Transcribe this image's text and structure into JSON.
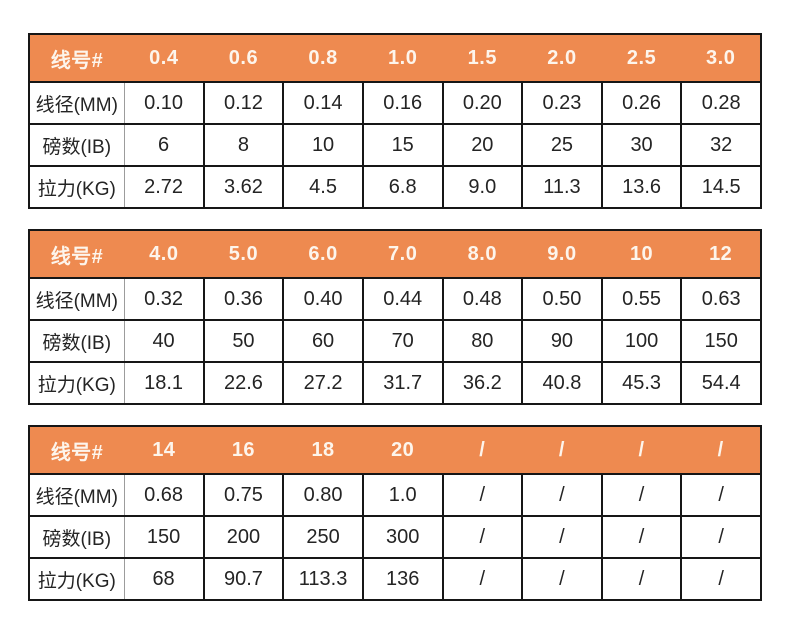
{
  "style": {
    "header_bg": "#ee8a50",
    "header_text_color": "#fdf5ec",
    "grid_line_color": "#161616",
    "label_divider_color": "#9c9c9c",
    "cell_text_color": "#242424",
    "page_bg": "#ffffff"
  },
  "chart_data": [
    {
      "type": "table",
      "header_label": "线号#",
      "columns": [
        "0.4",
        "0.6",
        "0.8",
        "1.0",
        "1.5",
        "2.0",
        "2.5",
        "3.0"
      ],
      "rows": [
        {
          "label": "线径(MM)",
          "values": [
            "0.10",
            "0.12",
            "0.14",
            "0.16",
            "0.20",
            "0.23",
            "0.26",
            "0.28"
          ]
        },
        {
          "label": "磅数(IB)",
          "values": [
            "6",
            "8",
            "10",
            "15",
            "20",
            "25",
            "30",
            "32"
          ]
        },
        {
          "label": "拉力(KG)",
          "values": [
            "2.72",
            "3.62",
            "4.5",
            "6.8",
            "9.0",
            "11.3",
            "13.6",
            "14.5"
          ]
        }
      ]
    },
    {
      "type": "table",
      "header_label": "线号#",
      "columns": [
        "4.0",
        "5.0",
        "6.0",
        "7.0",
        "8.0",
        "9.0",
        "10",
        "12"
      ],
      "rows": [
        {
          "label": "线径(MM)",
          "values": [
            "0.32",
            "0.36",
            "0.40",
            "0.44",
            "0.48",
            "0.50",
            "0.55",
            "0.63"
          ]
        },
        {
          "label": "磅数(IB)",
          "values": [
            "40",
            "50",
            "60",
            "70",
            "80",
            "90",
            "100",
            "150"
          ]
        },
        {
          "label": "拉力(KG)",
          "values": [
            "18.1",
            "22.6",
            "27.2",
            "31.7",
            "36.2",
            "40.8",
            "45.3",
            "54.4"
          ]
        }
      ]
    },
    {
      "type": "table",
      "header_label": "线号#",
      "columns": [
        "14",
        "16",
        "18",
        "20",
        "/",
        "/",
        "/",
        "/"
      ],
      "rows": [
        {
          "label": "线径(MM)",
          "values": [
            "0.68",
            "0.75",
            "0.80",
            "1.0",
            "/",
            "/",
            "/",
            "/"
          ]
        },
        {
          "label": "磅数(IB)",
          "values": [
            "150",
            "200",
            "250",
            "300",
            "/",
            "/",
            "/",
            "/"
          ]
        },
        {
          "label": "拉力(KG)",
          "values": [
            "68",
            "90.7",
            "113.3",
            "136",
            "/",
            "/",
            "/",
            "/"
          ]
        }
      ]
    }
  ]
}
